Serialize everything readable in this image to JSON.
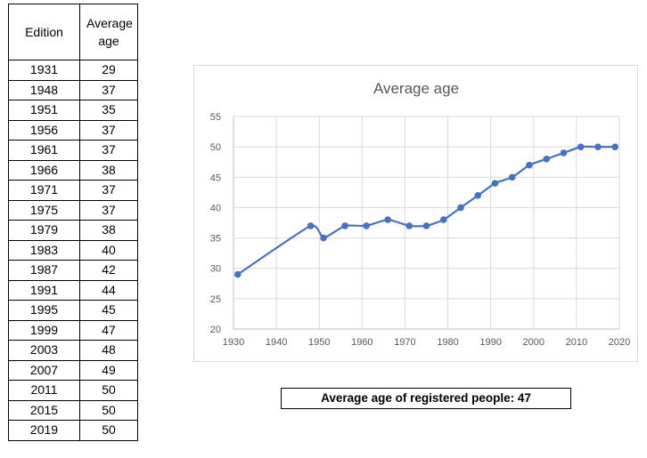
{
  "table": {
    "headers": [
      "Edition",
      "Average age"
    ],
    "rows": [
      [
        "1931",
        "29"
      ],
      [
        "1948",
        "37"
      ],
      [
        "1951",
        "35"
      ],
      [
        "1956",
        "37"
      ],
      [
        "1961",
        "37"
      ],
      [
        "1966",
        "38"
      ],
      [
        "1971",
        "37"
      ],
      [
        "1975",
        "37"
      ],
      [
        "1979",
        "38"
      ],
      [
        "1983",
        "40"
      ],
      [
        "1987",
        "42"
      ],
      [
        "1991",
        "44"
      ],
      [
        "1995",
        "45"
      ],
      [
        "1999",
        "47"
      ],
      [
        "2003",
        "48"
      ],
      [
        "2007",
        "49"
      ],
      [
        "2011",
        "50"
      ],
      [
        "2015",
        "50"
      ],
      [
        "2019",
        "50"
      ]
    ]
  },
  "summary": {
    "text": "Average age of registered people: 47"
  },
  "colors": {
    "series": "#4472c4",
    "grid": "#d9d9d9",
    "text": "#595959"
  },
  "chart_data": {
    "type": "line",
    "title": "Average age",
    "xlabel": "",
    "ylabel": "",
    "xlim": [
      1930,
      2020
    ],
    "ylim": [
      20,
      55
    ],
    "xticks": [
      1930,
      1940,
      1950,
      1960,
      1970,
      1980,
      1990,
      2000,
      2010,
      2020
    ],
    "yticks": [
      20,
      25,
      30,
      35,
      40,
      45,
      50,
      55
    ],
    "grid": true,
    "x": [
      1931,
      1948,
      1951,
      1956,
      1961,
      1966,
      1971,
      1975,
      1979,
      1983,
      1987,
      1991,
      1995,
      1999,
      2003,
      2007,
      2011,
      2015,
      2019
    ],
    "series": [
      {
        "values": [
          29,
          37,
          35,
          37,
          37,
          38,
          37,
          37,
          38,
          40,
          42,
          44,
          45,
          47,
          48,
          49,
          50,
          50,
          50
        ]
      }
    ]
  }
}
